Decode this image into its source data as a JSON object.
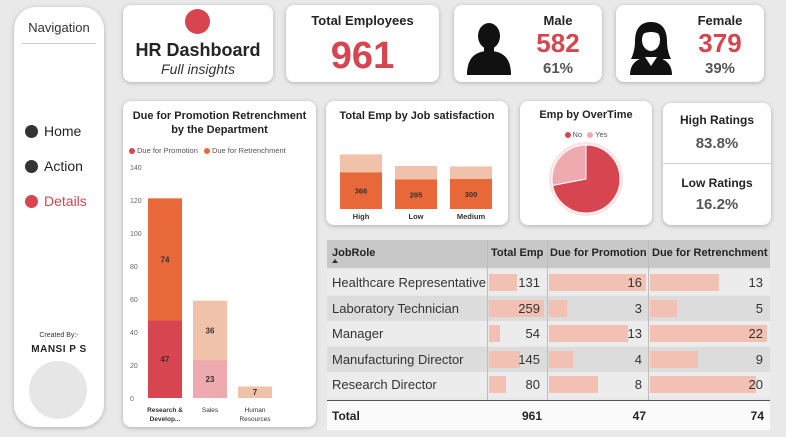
{
  "nav": {
    "title": "Navigation",
    "items": [
      {
        "label": "Home",
        "active": false
      },
      {
        "label": "Action",
        "active": false
      },
      {
        "label": "Details",
        "active": true
      }
    ],
    "created_by": "Created By:-",
    "author": "MANSI P S"
  },
  "header": {
    "title": "HR Dashboard",
    "subtitle": "Full insights"
  },
  "kpis": {
    "total_label": "Total Employees",
    "total_value": "961",
    "male_label": "Male",
    "male_value": "582",
    "male_pct": "61%",
    "female_label": "Female",
    "female_value": "379",
    "female_pct": "39%"
  },
  "ratings": {
    "high_label": "High Ratings",
    "high_value": "83.8%",
    "low_label": "Low Ratings",
    "low_value": "16.2%"
  },
  "colors": {
    "accent": "#d64550",
    "promotion_dark": "#d64550",
    "retrench_dark": "#e8683a",
    "promotion_light": "#eeaaaf",
    "retrench_light": "#f0c2aa",
    "databar": "#f3c1b4"
  },
  "chart_data": [
    {
      "id": "promo",
      "type": "bar",
      "title": "Due for Promotion Retrenchment by the Department",
      "legend": [
        "Due for Promotion",
        "Due for Retrenchment"
      ],
      "categories": [
        "Research & Develop...",
        "Sales",
        "Human Resources"
      ],
      "series": [
        {
          "name": "Due for Promotion",
          "values": [
            47,
            23,
            0
          ]
        },
        {
          "name": "Due for Retrenchment",
          "values": [
            74,
            36,
            7
          ]
        }
      ],
      "yticks": [
        0,
        20,
        40,
        60,
        80,
        100,
        120,
        140
      ],
      "ylim": [
        0,
        140
      ],
      "stacked": true
    },
    {
      "id": "job_satisfaction",
      "type": "bar",
      "title": "Total Emp by Job satisfaction",
      "categories": [
        "High",
        "Low",
        "Medium"
      ],
      "series": [
        {
          "name": "lower",
          "values": [
            366,
            295,
            300
          ]
        },
        {
          "name": "upper",
          "values": [
            180,
            135,
            125
          ]
        }
      ],
      "stacked": true
    },
    {
      "id": "overtime",
      "type": "pie",
      "title": "Emp by OverTime",
      "legend": [
        "No",
        "Yes"
      ],
      "slices": [
        {
          "label": "No",
          "value": 72
        },
        {
          "label": "Yes",
          "value": 28
        }
      ]
    }
  ],
  "table": {
    "columns": [
      "JobRole",
      "Total Emp",
      "Due for Promotion",
      "Due for Retrenchment"
    ],
    "rows": [
      {
        "role": "Healthcare Representative",
        "total": "131",
        "promo": "16",
        "retrench": "13"
      },
      {
        "role": "Laboratory Technician",
        "total": "259",
        "promo": "3",
        "retrench": "5"
      },
      {
        "role": "Manager",
        "total": "54",
        "promo": "13",
        "retrench": "22"
      },
      {
        "role": "Manufacturing Director",
        "total": "145",
        "promo": "4",
        "retrench": "9"
      },
      {
        "role": "Research Director",
        "total": "80",
        "promo": "8",
        "retrench": "20"
      }
    ],
    "total_label": "Total",
    "total_emp": "961",
    "total_promo": "47",
    "total_retrench": "74"
  }
}
